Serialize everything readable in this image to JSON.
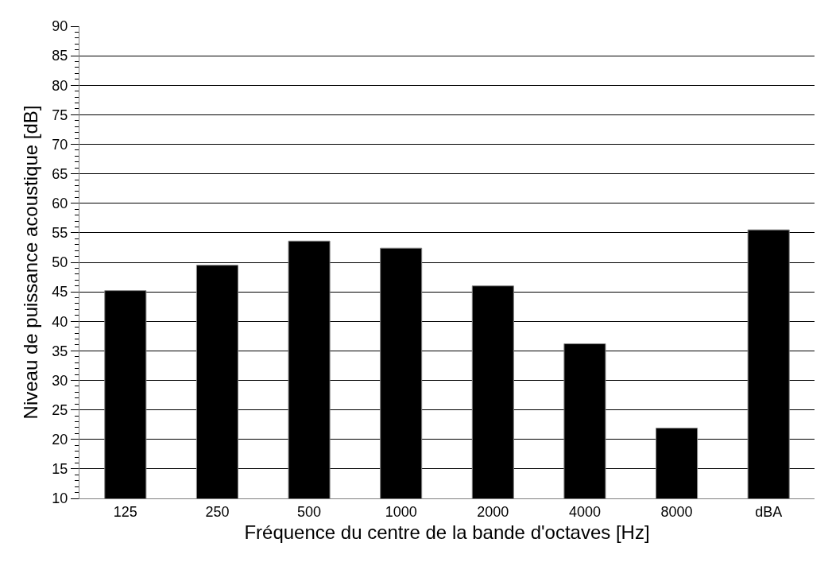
{
  "chart_data": {
    "type": "bar",
    "xlabel": "Fréquence du centre de la bande d'octaves [Hz]",
    "ylabel": "Niveau de puissance acoustique [dB]",
    "categories": [
      "125",
      "250",
      "500",
      "1000",
      "2000",
      "4000",
      "8000",
      "dBA"
    ],
    "values": [
      45.2,
      49.5,
      53.6,
      52.4,
      46.0,
      36.2,
      21.9,
      55.5
    ],
    "color": "#000000",
    "ylim": [
      10,
      90
    ],
    "yticks": [
      10,
      15,
      20,
      25,
      30,
      35,
      40,
      45,
      50,
      55,
      60,
      65,
      70,
      75,
      80,
      85,
      90
    ],
    "grid": "y"
  }
}
